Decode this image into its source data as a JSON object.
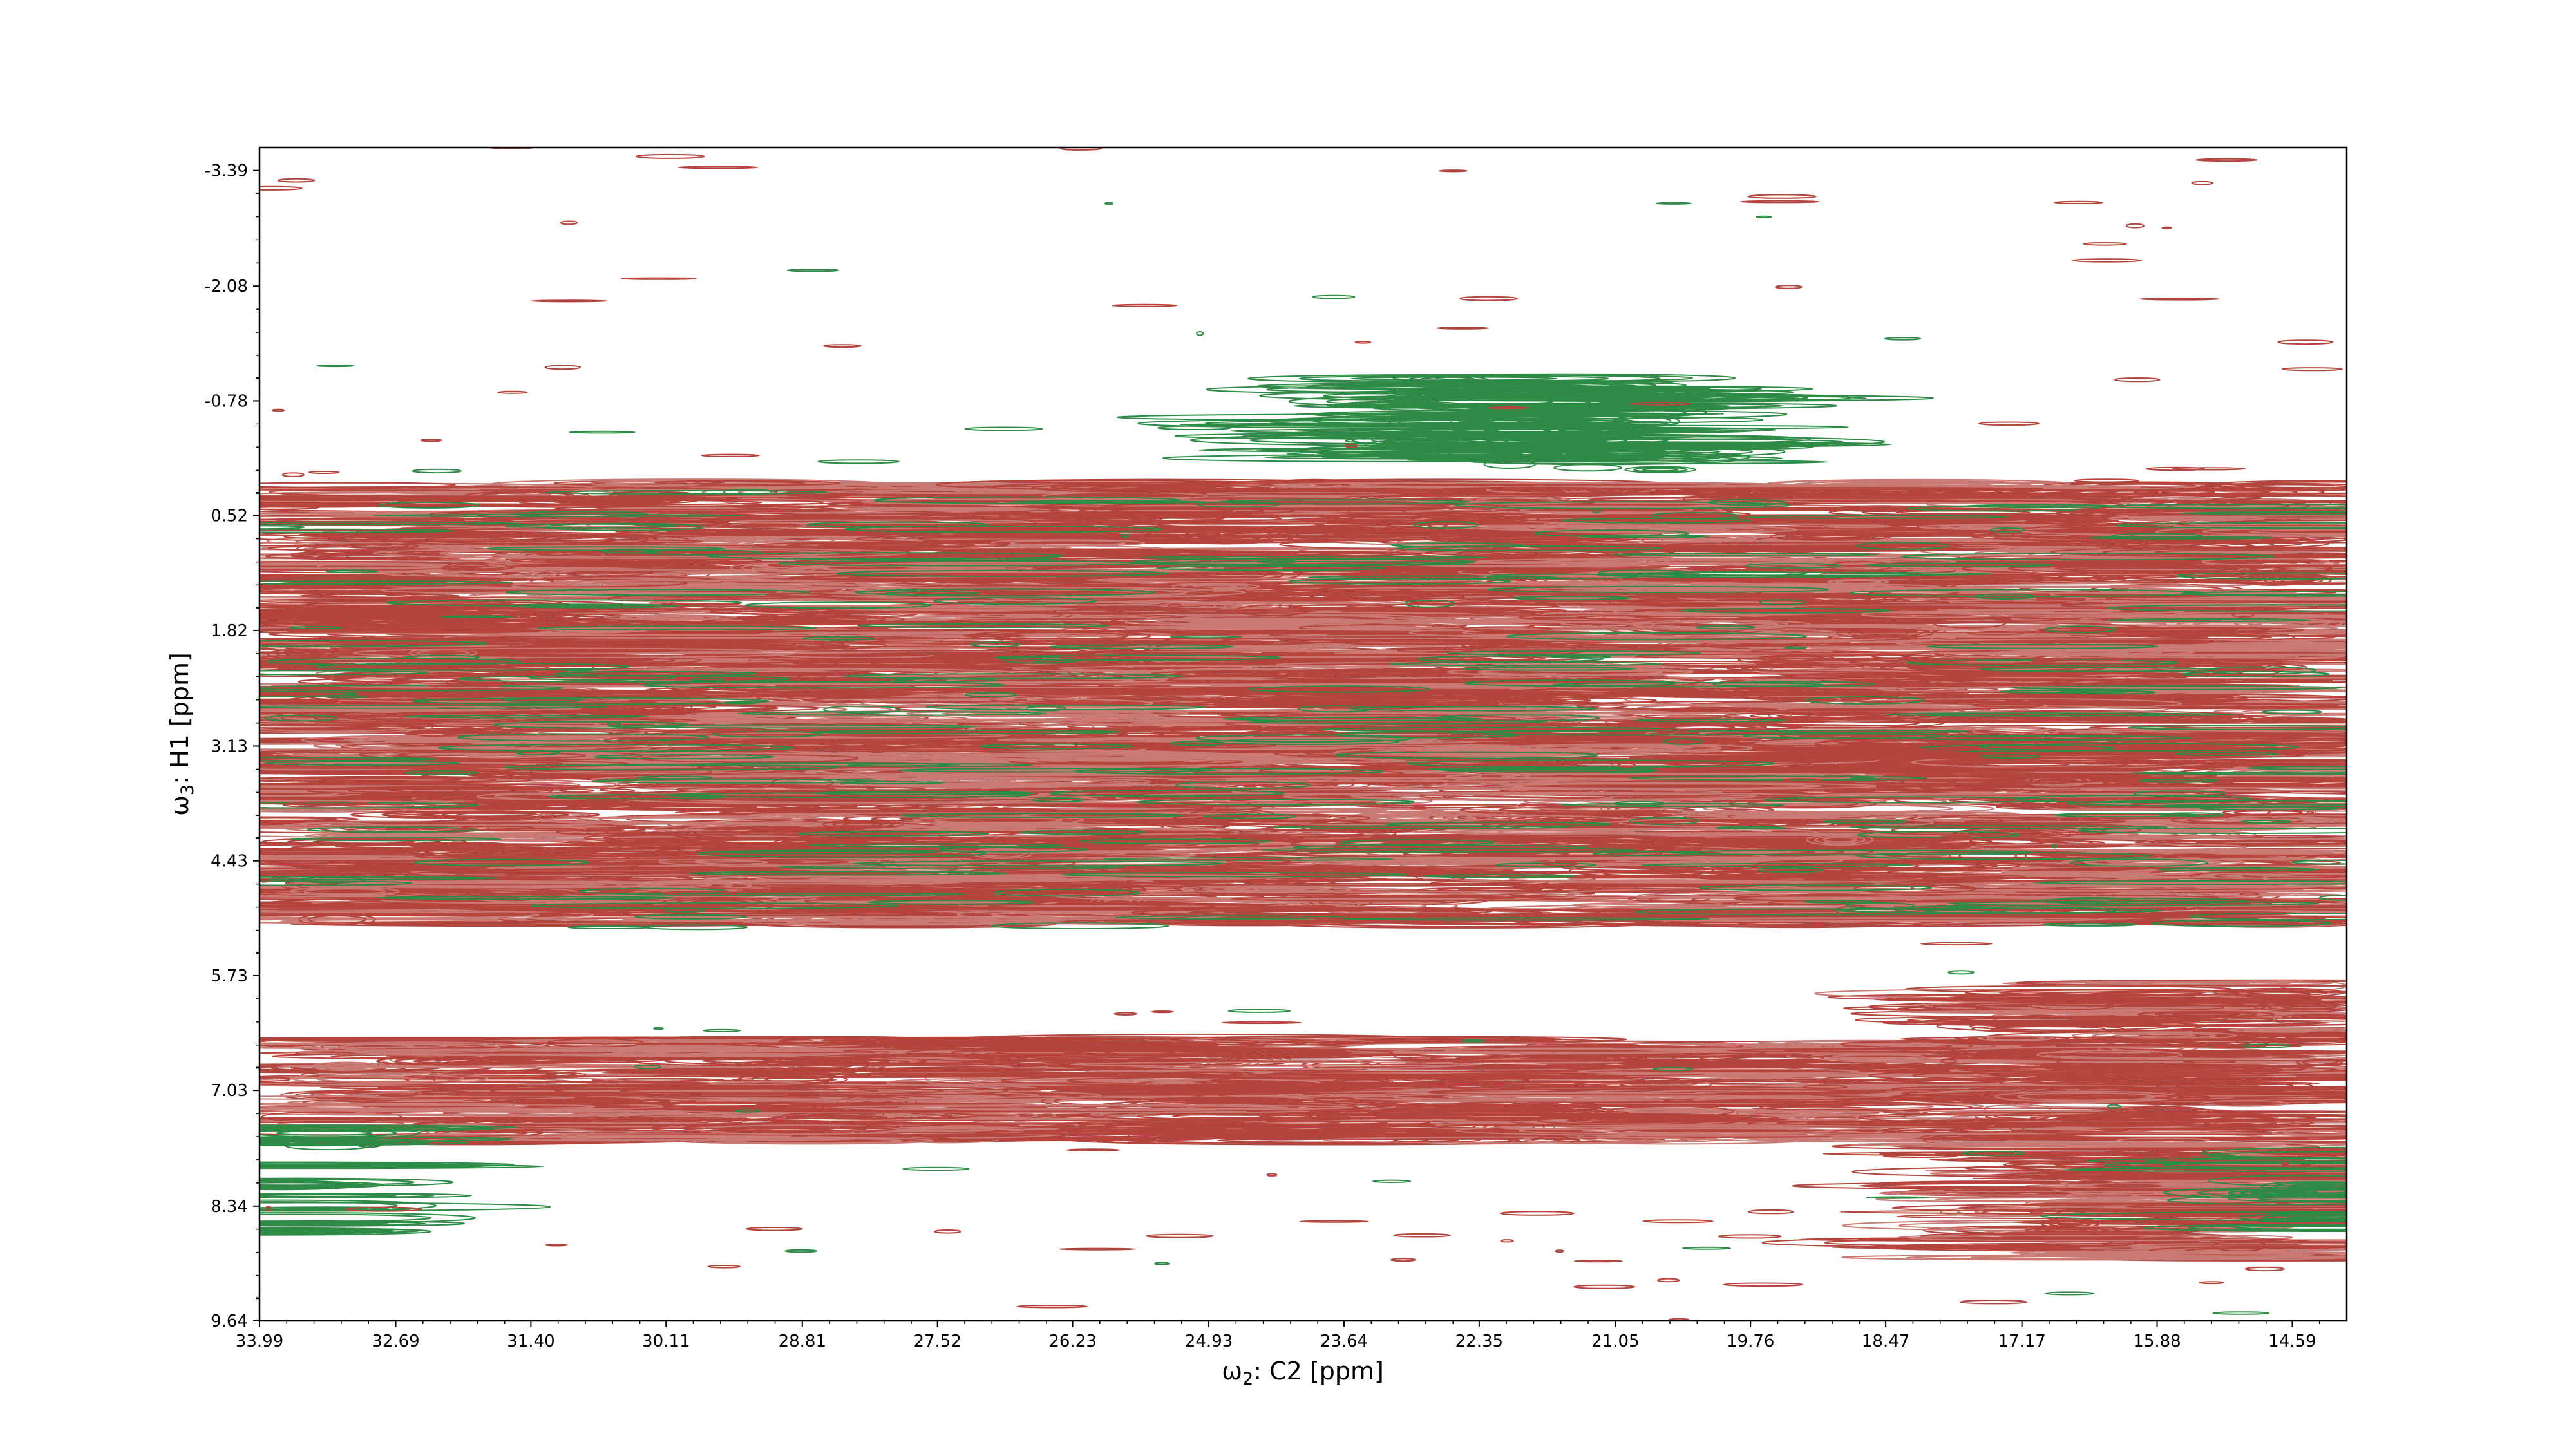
{
  "chart_data": {
    "type": "contour",
    "xlabel": {
      "symbol": "ω",
      "sub": "2",
      "rest": ": C2 [ppm]"
    },
    "ylabel": {
      "symbol": "ω",
      "sub": "3",
      "rest": ": H1 [ppm]"
    },
    "xlim": [
      33.99,
      14.07
    ],
    "ylim": [
      9.64,
      -3.65
    ],
    "x_ticks": [
      "33.99",
      "32.69",
      "31.40",
      "30.11",
      "28.81",
      "27.52",
      "26.23",
      "24.93",
      "23.64",
      "22.35",
      "21.05",
      "19.76",
      "18.47",
      "17.17",
      "15.88",
      "14.59"
    ],
    "y_ticks": [
      "-3.39",
      "-2.08",
      "-0.78",
      "0.52",
      "1.82",
      "3.13",
      "4.43",
      "5.73",
      "7.03",
      "8.34",
      "9.64"
    ],
    "colors": {
      "positive": "#b5443c",
      "positive_light": "#c97a74",
      "negative": "#2e8b46",
      "frame": "#000000"
    },
    "bands": [
      {
        "sign": "positive",
        "y_min": 0.15,
        "y_max": 5.15,
        "x_min": 33.99,
        "x_max": 14.07
      },
      {
        "sign": "positive",
        "y_min": 6.45,
        "y_max": 7.6,
        "x_min": 33.5,
        "x_max": 17.3
      },
      {
        "sign": "positive",
        "y_min": 5.8,
        "y_max": 8.95,
        "x_min": 17.4,
        "x_max": 14.07
      },
      {
        "sign": "negative",
        "y_min": -1.05,
        "y_max": 0.05,
        "x_min": 23.3,
        "x_max": 20.4
      },
      {
        "sign": "negative",
        "y_min": 7.4,
        "y_max": 8.7,
        "x_min": 33.99,
        "x_max": 33.3
      },
      {
        "sign": "negative",
        "y_min": 7.7,
        "y_max": 8.6,
        "x_min": 14.8,
        "x_max": 14.07
      }
    ]
  }
}
